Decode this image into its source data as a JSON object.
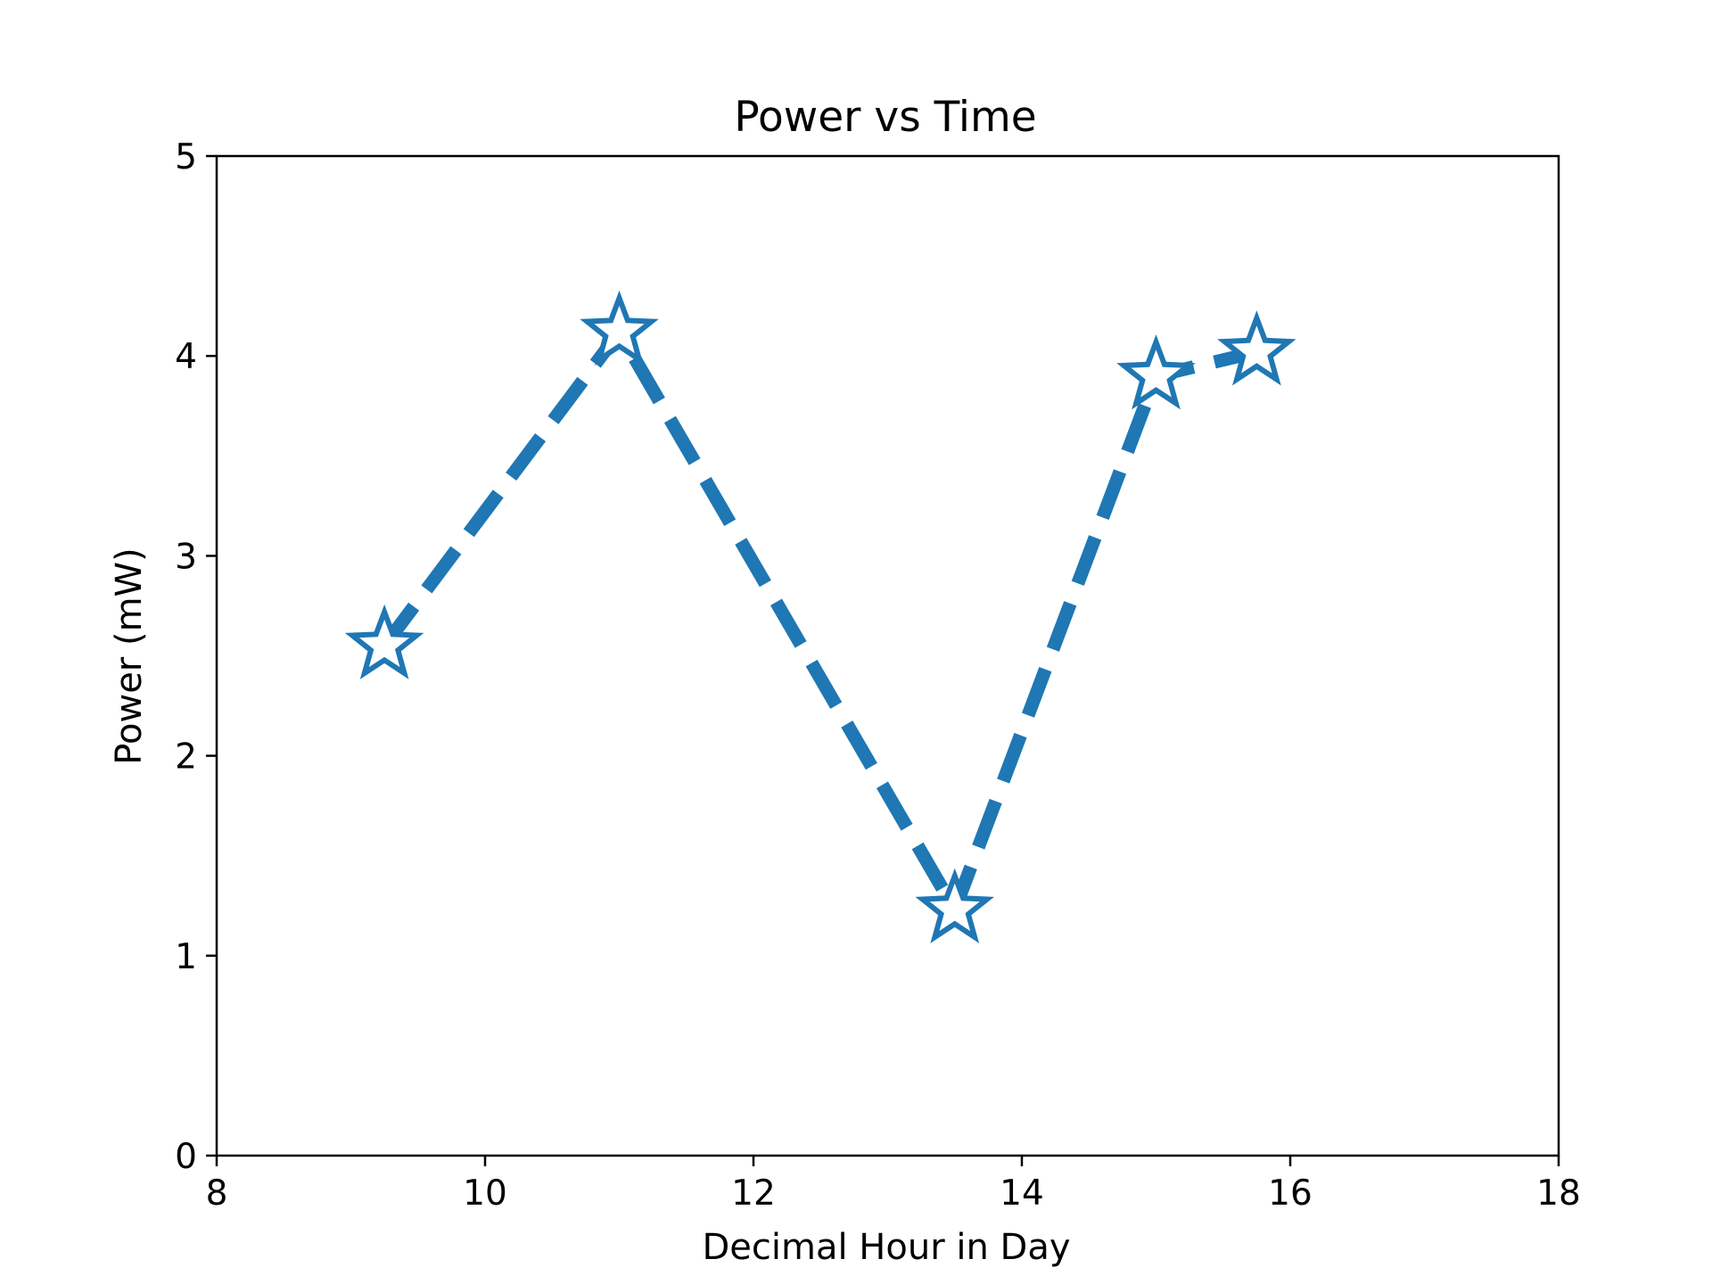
{
  "chart_data": {
    "type": "line",
    "title": "Power vs Time",
    "xlabel": "Decimal Hour in Day",
    "ylabel": "Power (mW)",
    "xlim": [
      8,
      18
    ],
    "ylim": [
      0,
      5
    ],
    "xticks": [
      8,
      10,
      12,
      14,
      16,
      18
    ],
    "yticks": [
      0,
      1,
      2,
      3,
      4,
      5
    ],
    "grid": false,
    "legend": "none",
    "series": [
      {
        "color": "#1f77b4",
        "line_style": "dashed",
        "marker": "star-icon",
        "marker_fill": "#ffffff",
        "x": [
          9.25,
          11.0,
          13.5,
          15.0,
          15.75
        ],
        "y": [
          2.55,
          4.12,
          1.23,
          3.9,
          4.02
        ]
      }
    ]
  }
}
